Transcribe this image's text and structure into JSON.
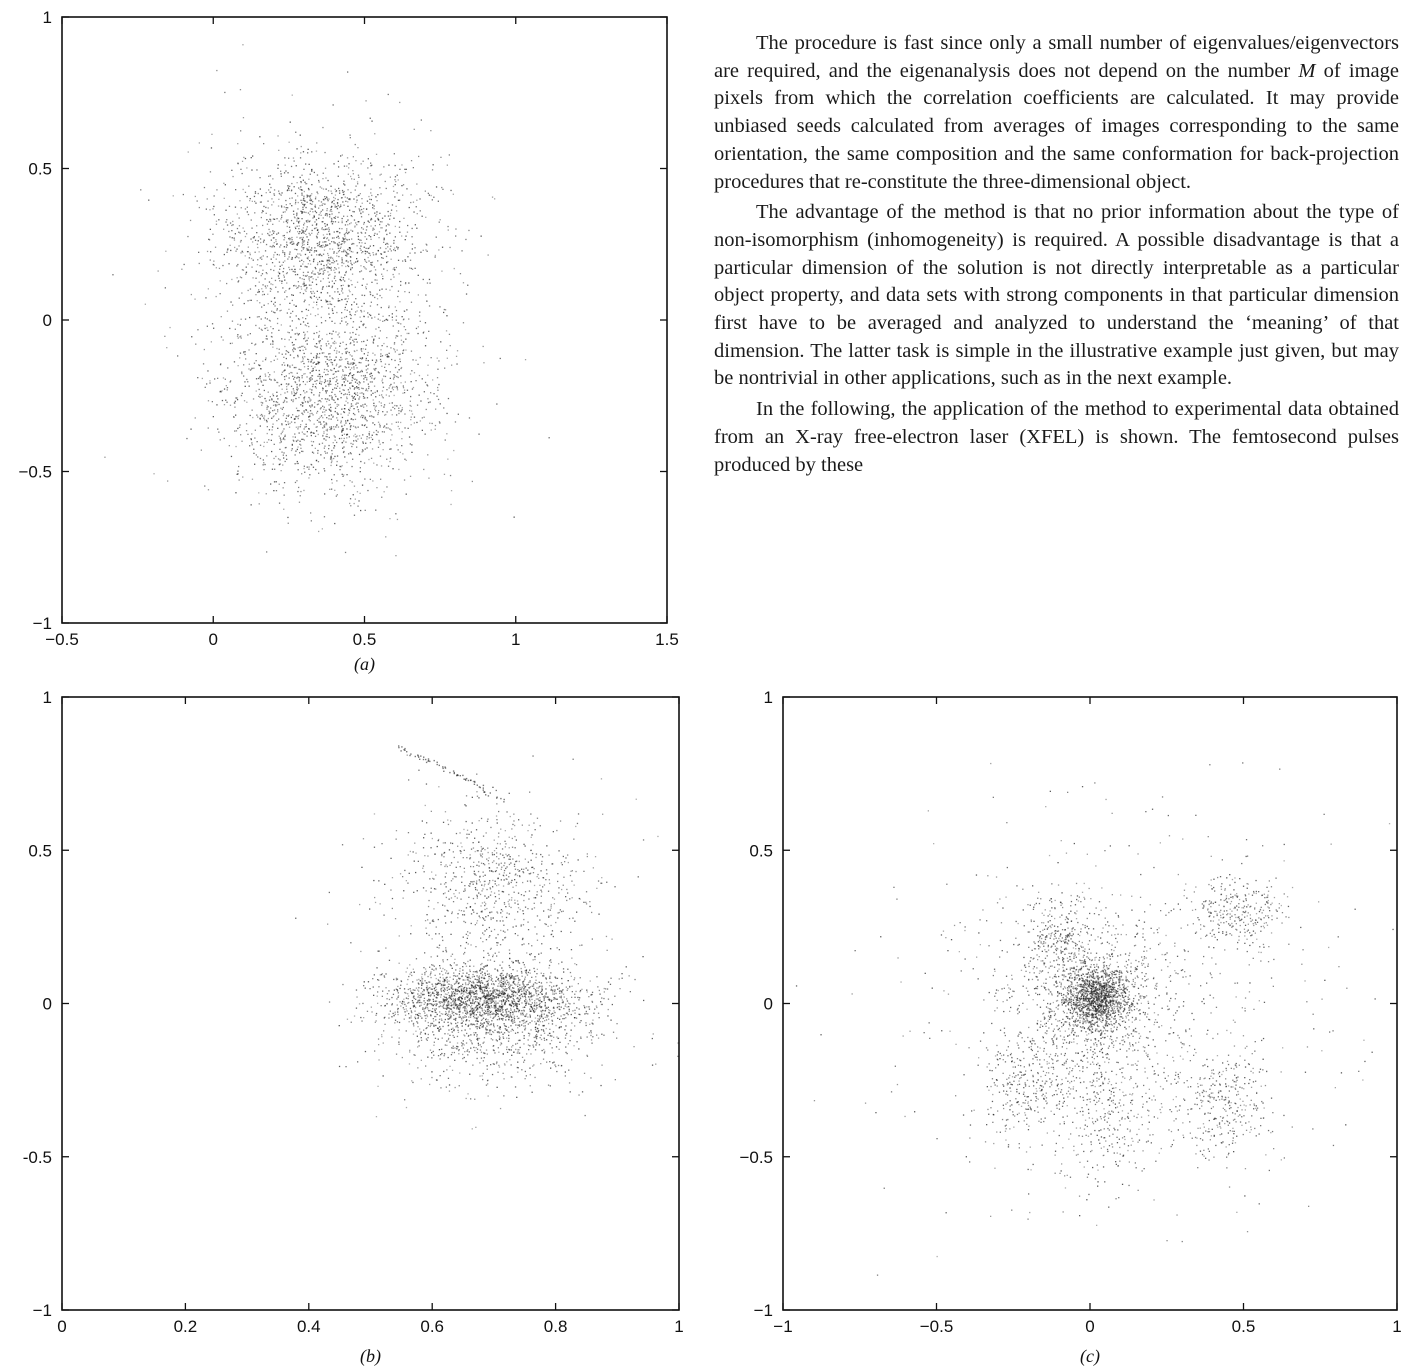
{
  "text": {
    "p1_a": "The procedure is fast since only a small number of eigenvalues/eigenvectors are required, and the eigenanalysis does not depend on the number ",
    "p1_m": "M",
    "p1_b": " of image pixels from which the correlation coefficients are calculated. It may provide unbiased seeds calculated from averages of images corresponding to the same orientation, the same composition and the same conformation for back-projection procedures that re-constitute the three-dimensional object.",
    "p2": "The advantage of the method is that no prior information about the type of non-isomorphism (inhomogeneity) is required. A possible disadvantage is that a particular dimension of the solution is not directly interpretable as a particular object property, and data sets with strong components in that particular dimension first have to be averaged and analyzed to understand the ‘meaning’ of that dimension. The latter task is simple in the illustrative example just given, but may be nontrivial in other applications, such as in the next example.",
    "p3": "In the following, the application of the method to experimental data obtained from an X-ray free-electron laser (XFEL) is shown. The femtosecond pulses produced by these"
  },
  "chart_data": [
    {
      "type": "scatter",
      "panel": "(a)",
      "xlim": [
        -0.5,
        1.5
      ],
      "ylim": [
        -1,
        1
      ],
      "xticks": [
        "−0.5",
        "0",
        "0.5",
        "1",
        "1.5"
      ],
      "yticks": [
        "1",
        "0.5",
        "0",
        "−0.5",
        "−1"
      ],
      "caption_left": "(",
      "caption_letter": "a",
      "caption_right": ")",
      "clusters": [
        {
          "cx": 0.35,
          "cy": 0.27,
          "sx": 0.17,
          "sy": 0.14,
          "n": 1500
        },
        {
          "cx": 0.38,
          "cy": -0.25,
          "sx": 0.17,
          "sy": 0.15,
          "n": 1600
        },
        {
          "cx": 0.37,
          "cy": 0.0,
          "sx": 0.22,
          "sy": 0.3,
          "n": 500
        }
      ],
      "arcs": []
    },
    {
      "type": "scatter",
      "panel": "(b)",
      "xlim": [
        0,
        1
      ],
      "ylim": [
        -1,
        1
      ],
      "xticks": [
        "0",
        "0.2",
        "0.4",
        "0.6",
        "0.8",
        "1"
      ],
      "yticks": [
        "1",
        "0.5",
        "0",
        "-0.5",
        "−1"
      ],
      "caption_left": "(",
      "caption_letter": "b",
      "caption_right": ")",
      "clusters": [
        {
          "cx": 0.68,
          "cy": 0.02,
          "sx": 0.075,
          "sy": 0.05,
          "n": 1600
        },
        {
          "cx": 0.7,
          "cy": -0.07,
          "sx": 0.09,
          "sy": 0.1,
          "n": 900
        },
        {
          "cx": 0.7,
          "cy": 0.42,
          "sx": 0.07,
          "sy": 0.1,
          "n": 550
        },
        {
          "cx": 0.68,
          "cy": 0.2,
          "sx": 0.1,
          "sy": 0.22,
          "n": 400
        }
      ],
      "arcs": [
        {
          "x": [
            0.54,
            0.6,
            0.66,
            0.72
          ],
          "y": [
            0.84,
            0.79,
            0.73,
            0.65
          ],
          "n": 70
        }
      ]
    },
    {
      "type": "scatter",
      "panel": "(c)",
      "xlim": [
        -1,
        1
      ],
      "ylim": [
        -1,
        1
      ],
      "xticks": [
        "−1",
        "−0.5",
        "0",
        "0.5",
        "1"
      ],
      "yticks": [
        "1",
        "0.5",
        "0",
        "−0.5",
        "−1"
      ],
      "caption_left": "(",
      "caption_letter": "c",
      "caption_right": ")",
      "clusters": [
        {
          "cx": 0.02,
          "cy": 0.02,
          "sx": 0.05,
          "sy": 0.05,
          "n": 1200
        },
        {
          "cx": 0.0,
          "cy": 0.0,
          "sx": 0.13,
          "sy": 0.13,
          "n": 900
        },
        {
          "cx": 0.48,
          "cy": 0.3,
          "sx": 0.07,
          "sy": 0.06,
          "n": 280
        },
        {
          "cx": 0.42,
          "cy": -0.33,
          "sx": 0.08,
          "sy": 0.08,
          "n": 300
        },
        {
          "cx": -0.2,
          "cy": -0.27,
          "sx": 0.08,
          "sy": 0.08,
          "n": 260
        },
        {
          "cx": 0.05,
          "cy": -0.38,
          "sx": 0.07,
          "sy": 0.1,
          "n": 240
        },
        {
          "cx": -0.1,
          "cy": 0.22,
          "sx": 0.06,
          "sy": 0.07,
          "n": 250
        },
        {
          "cx": 0.1,
          "cy": -0.05,
          "sx": 0.35,
          "sy": 0.3,
          "n": 700
        }
      ],
      "arcs": []
    }
  ]
}
